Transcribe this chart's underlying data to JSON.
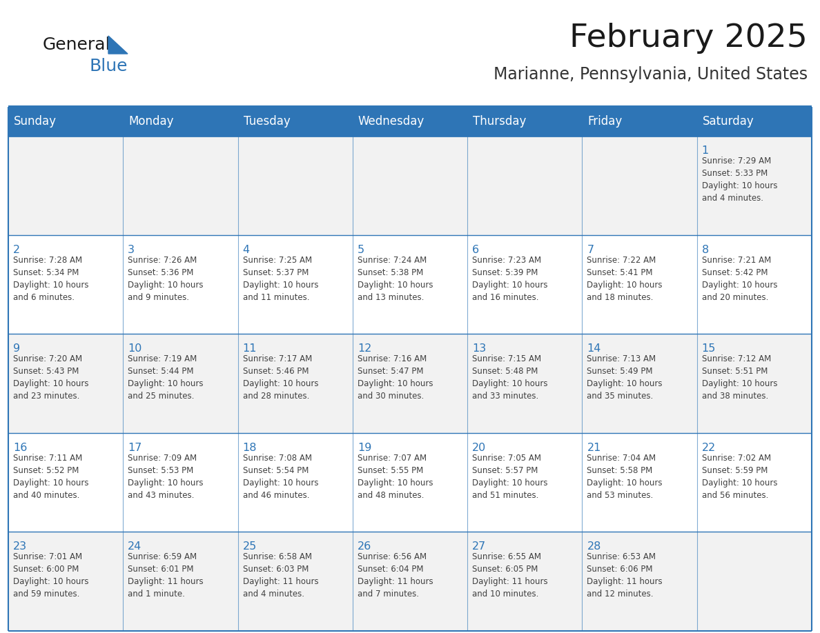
{
  "title": "February 2025",
  "subtitle": "Marianne, Pennsylvania, United States",
  "days_of_week": [
    "Sunday",
    "Monday",
    "Tuesday",
    "Wednesday",
    "Thursday",
    "Friday",
    "Saturday"
  ],
  "header_bg": "#2E75B6",
  "header_text": "#FFFFFF",
  "cell_bg_light": "#F2F2F2",
  "cell_bg_white": "#FFFFFF",
  "border_color": "#2E75B6",
  "line_color": "#2E75B6",
  "text_color": "#404040",
  "day_num_color": "#2E75B6",
  "title_color": "#1a1a1a",
  "subtitle_color": "#333333",
  "calendar_data": [
    [
      {
        "day": null,
        "info": ""
      },
      {
        "day": null,
        "info": ""
      },
      {
        "day": null,
        "info": ""
      },
      {
        "day": null,
        "info": ""
      },
      {
        "day": null,
        "info": ""
      },
      {
        "day": null,
        "info": ""
      },
      {
        "day": 1,
        "info": "Sunrise: 7:29 AM\nSunset: 5:33 PM\nDaylight: 10 hours\nand 4 minutes."
      }
    ],
    [
      {
        "day": 2,
        "info": "Sunrise: 7:28 AM\nSunset: 5:34 PM\nDaylight: 10 hours\nand 6 minutes."
      },
      {
        "day": 3,
        "info": "Sunrise: 7:26 AM\nSunset: 5:36 PM\nDaylight: 10 hours\nand 9 minutes."
      },
      {
        "day": 4,
        "info": "Sunrise: 7:25 AM\nSunset: 5:37 PM\nDaylight: 10 hours\nand 11 minutes."
      },
      {
        "day": 5,
        "info": "Sunrise: 7:24 AM\nSunset: 5:38 PM\nDaylight: 10 hours\nand 13 minutes."
      },
      {
        "day": 6,
        "info": "Sunrise: 7:23 AM\nSunset: 5:39 PM\nDaylight: 10 hours\nand 16 minutes."
      },
      {
        "day": 7,
        "info": "Sunrise: 7:22 AM\nSunset: 5:41 PM\nDaylight: 10 hours\nand 18 minutes."
      },
      {
        "day": 8,
        "info": "Sunrise: 7:21 AM\nSunset: 5:42 PM\nDaylight: 10 hours\nand 20 minutes."
      }
    ],
    [
      {
        "day": 9,
        "info": "Sunrise: 7:20 AM\nSunset: 5:43 PM\nDaylight: 10 hours\nand 23 minutes."
      },
      {
        "day": 10,
        "info": "Sunrise: 7:19 AM\nSunset: 5:44 PM\nDaylight: 10 hours\nand 25 minutes."
      },
      {
        "day": 11,
        "info": "Sunrise: 7:17 AM\nSunset: 5:46 PM\nDaylight: 10 hours\nand 28 minutes."
      },
      {
        "day": 12,
        "info": "Sunrise: 7:16 AM\nSunset: 5:47 PM\nDaylight: 10 hours\nand 30 minutes."
      },
      {
        "day": 13,
        "info": "Sunrise: 7:15 AM\nSunset: 5:48 PM\nDaylight: 10 hours\nand 33 minutes."
      },
      {
        "day": 14,
        "info": "Sunrise: 7:13 AM\nSunset: 5:49 PM\nDaylight: 10 hours\nand 35 minutes."
      },
      {
        "day": 15,
        "info": "Sunrise: 7:12 AM\nSunset: 5:51 PM\nDaylight: 10 hours\nand 38 minutes."
      }
    ],
    [
      {
        "day": 16,
        "info": "Sunrise: 7:11 AM\nSunset: 5:52 PM\nDaylight: 10 hours\nand 40 minutes."
      },
      {
        "day": 17,
        "info": "Sunrise: 7:09 AM\nSunset: 5:53 PM\nDaylight: 10 hours\nand 43 minutes."
      },
      {
        "day": 18,
        "info": "Sunrise: 7:08 AM\nSunset: 5:54 PM\nDaylight: 10 hours\nand 46 minutes."
      },
      {
        "day": 19,
        "info": "Sunrise: 7:07 AM\nSunset: 5:55 PM\nDaylight: 10 hours\nand 48 minutes."
      },
      {
        "day": 20,
        "info": "Sunrise: 7:05 AM\nSunset: 5:57 PM\nDaylight: 10 hours\nand 51 minutes."
      },
      {
        "day": 21,
        "info": "Sunrise: 7:04 AM\nSunset: 5:58 PM\nDaylight: 10 hours\nand 53 minutes."
      },
      {
        "day": 22,
        "info": "Sunrise: 7:02 AM\nSunset: 5:59 PM\nDaylight: 10 hours\nand 56 minutes."
      }
    ],
    [
      {
        "day": 23,
        "info": "Sunrise: 7:01 AM\nSunset: 6:00 PM\nDaylight: 10 hours\nand 59 minutes."
      },
      {
        "day": 24,
        "info": "Sunrise: 6:59 AM\nSunset: 6:01 PM\nDaylight: 11 hours\nand 1 minute."
      },
      {
        "day": 25,
        "info": "Sunrise: 6:58 AM\nSunset: 6:03 PM\nDaylight: 11 hours\nand 4 minutes."
      },
      {
        "day": 26,
        "info": "Sunrise: 6:56 AM\nSunset: 6:04 PM\nDaylight: 11 hours\nand 7 minutes."
      },
      {
        "day": 27,
        "info": "Sunrise: 6:55 AM\nSunset: 6:05 PM\nDaylight: 11 hours\nand 10 minutes."
      },
      {
        "day": 28,
        "info": "Sunrise: 6:53 AM\nSunset: 6:06 PM\nDaylight: 11 hours\nand 12 minutes."
      },
      {
        "day": null,
        "info": ""
      }
    ]
  ],
  "logo_text_general": "General",
  "logo_text_blue": "Blue",
  "logo_color_general": "#1a1a1a",
  "logo_color_blue": "#2E75B6",
  "logo_triangle_color": "#2E75B6",
  "fig_width": 11.88,
  "fig_height": 9.18,
  "dpi": 100
}
